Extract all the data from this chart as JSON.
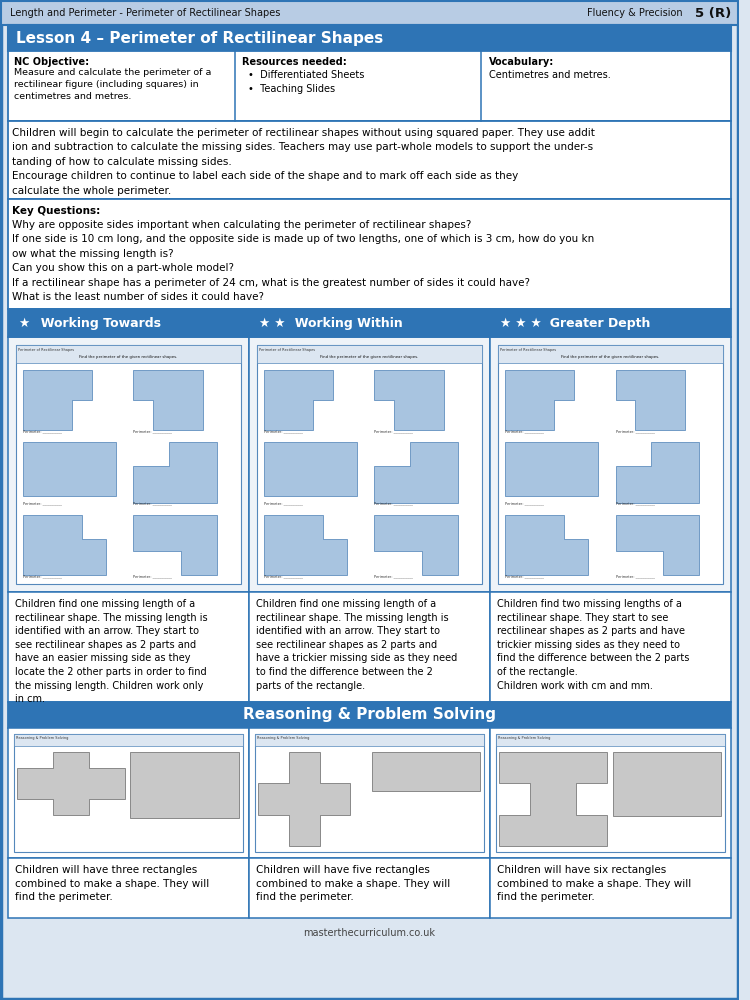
{
  "header_bg": "#b8cce4",
  "header_left": "Length and Perimeter - Perimeter of Rectilinear Shapes",
  "header_right": "Fluency & Precision",
  "header_num": "5 (R)",
  "lesson_title": "Lesson 4 – Perimeter of Rectilinear Shapes",
  "lesson_title_bg": "#2e74b5",
  "lesson_title_color": "#ffffff",
  "nc_objective_title": "NC Objective:",
  "nc_objective_body": "Measure and calculate the perimeter of a\nrectilinear figure (including squares) in\ncentimetres and metres.",
  "resources_title": "Resources needed:",
  "resources_items": [
    "Differentiated Sheets",
    "Teaching Slides"
  ],
  "vocabulary_title": "Vocabulary:",
  "vocabulary_body": "Centimetres and metres.",
  "overview_text": "Children will begin to calculate the perimeter of rectilinear shapes without using squared paper. They use addit\nion and subtraction to calculate the missing sides. Teachers may use part-whole models to support the under-s\ntanding of how to calculate missing sides.\nEncourage children to continue to label each side of the shape and to mark off each side as they\ncalculate the whole perimeter.",
  "key_questions_title": "Key Questions:",
  "key_questions": [
    "Why are opposite sides important when calculating the perimeter of rectilinear shapes?",
    "If one side is 10 cm long, and the opposite side is made up of two lengths, one of which is 3 cm, how do you kn\now what the missing length is?",
    "Can you show this on a part-whole model?",
    "If a rectilinear shape has a perimeter of 24 cm, what is the greatest number of sides it could have?",
    "What is the least number of sides it could have?"
  ],
  "col1_title": "Working Towards",
  "col2_title": "Working Within",
  "col3_title": "Greater Depth",
  "col_header_bg": "#2e74b5",
  "col_header_color": "#ffffff",
  "col_desc1": "Children find one missing length of a\nrectilinear shape. The missing length is\nidentified with an arrow. They start to\nsee rectilinear shapes as 2 parts and\nhave an easier missing side as they\nlocate the 2 other parts in order to find\nthe missing length. Children work only\nin cm.",
  "col_desc2": "Children find one missing length of a\nrectilinear shape. The missing length is\nidentified with an arrow. They start to\nsee rectilinear shapes as 2 parts and\nhave a trickier missing side as they need\nto find the difference between the 2\nparts of the rectangle.",
  "col_desc3": "Children find two missing lengths of a\nrectilinear shape. They start to see\nrectilinear shapes as 2 parts and have\ntrickier missing sides as they need to\nfind the difference between the 2 parts\nof the rectangle.\nChildren work with cm and mm.",
  "rps_title": "Reasoning & Problem Solving",
  "rps_desc1": "Children will have three rectangles\ncombined to make a shape. They will\nfind the perimeter.",
  "rps_desc2": "Children will have five rectangles\ncombined to make a shape. They will\nfind the perimeter.",
  "rps_desc3": "Children will have six rectangles\ncombined to make a shape. They will\nfind the perimeter.",
  "footer_text": "masterthecurriculum.co.uk",
  "border_color": "#2e74b5",
  "worksheet_bg": "#dce6f1",
  "shape_color": "#a8c4e0"
}
